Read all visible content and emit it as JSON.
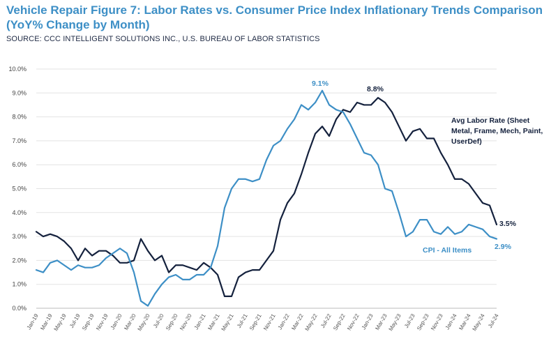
{
  "chart_data": {
    "type": "line",
    "title": "Vehicle Repair Figure 7: Labor Rates vs. Consumer Price Index Inflationary Trends Comparison (YoY% Change by Month)",
    "subtitle": "SOURCE: CCC INTELLIGENT SOLUTIONS INC., U.S. BUREAU OF LABOR STATISTICS",
    "xlabel": "",
    "ylabel": "",
    "ylim": [
      0,
      10
    ],
    "yticks": [
      "0.0%",
      "1.0%",
      "2.0%",
      "3.0%",
      "4.0%",
      "5.0%",
      "6.0%",
      "7.0%",
      "8.0%",
      "9.0%",
      "10.0%"
    ],
    "xtick_labels": [
      "Jan-19",
      "Mar-19",
      "May-19",
      "Jul-19",
      "Sep-19",
      "Nov-19",
      "Jan-20",
      "Mar-20",
      "May-20",
      "Jul-20",
      "Sep-20",
      "Nov-20",
      "Jan-21",
      "Mar-21",
      "May-21",
      "Jul-21",
      "Sep-21",
      "Nov-21",
      "Jan-22",
      "Mar-22",
      "May-22",
      "Jul-22",
      "Sep-22",
      "Nov-22",
      "Jan-23",
      "Mar-23",
      "May-23",
      "Jul-23",
      "Sep-23",
      "Nov-23",
      "Jan-24",
      "Mar-24",
      "May-24",
      "Jul-24"
    ],
    "grid": true,
    "series": [
      {
        "name": "Avg Labor Rate (Sheet Metal, Frame, Mech, Paint, UserDef)",
        "color": "#14213d",
        "values": [
          3.2,
          3.0,
          3.1,
          3.0,
          2.8,
          2.5,
          2.0,
          2.5,
          2.2,
          2.4,
          2.4,
          2.2,
          1.9,
          1.9,
          2.0,
          2.9,
          2.4,
          2.0,
          2.2,
          1.5,
          1.8,
          1.8,
          1.7,
          1.6,
          1.9,
          1.7,
          1.4,
          0.5,
          0.5,
          1.3,
          1.5,
          1.6,
          1.6,
          2.0,
          2.4,
          3.7,
          4.4,
          4.8,
          5.6,
          6.5,
          7.3,
          7.6,
          7.2,
          7.9,
          8.3,
          8.2,
          8.6,
          8.5,
          8.5,
          8.8,
          8.6,
          8.2,
          7.6,
          7.0,
          7.4,
          7.5,
          7.1,
          7.1,
          6.5,
          6.0,
          5.4,
          5.4,
          5.2,
          4.8,
          4.4,
          4.3,
          3.5
        ]
      },
      {
        "name": "CPI - All Items",
        "color": "#3d8fc6",
        "values": [
          1.6,
          1.5,
          1.9,
          2.0,
          1.8,
          1.6,
          1.8,
          1.7,
          1.7,
          1.8,
          2.1,
          2.3,
          2.5,
          2.3,
          1.5,
          0.3,
          0.1,
          0.6,
          1.0,
          1.3,
          1.4,
          1.2,
          1.2,
          1.4,
          1.4,
          1.7,
          2.6,
          4.2,
          5.0,
          5.4,
          5.4,
          5.3,
          5.4,
          6.2,
          6.8,
          7.0,
          7.5,
          7.9,
          8.5,
          8.3,
          8.6,
          9.1,
          8.5,
          8.3,
          8.2,
          7.7,
          7.1,
          6.5,
          6.4,
          6.0,
          5.0,
          4.9,
          4.0,
          3.0,
          3.2,
          3.7,
          3.7,
          3.2,
          3.1,
          3.4,
          3.1,
          3.2,
          3.5,
          3.4,
          3.3,
          3.0,
          2.9
        ]
      }
    ],
    "annotations": {
      "cpi_peak": "9.1%",
      "labor_peak": "8.8%",
      "labor_end": "3.5%",
      "cpi_end": "2.9%",
      "labor_legend_line1": "Avg Labor Rate (Sheet",
      "labor_legend_line2": "Metal, Frame, Mech, Paint,",
      "labor_legend_line3": "UserDef)",
      "cpi_legend": "CPI - All Items"
    }
  }
}
